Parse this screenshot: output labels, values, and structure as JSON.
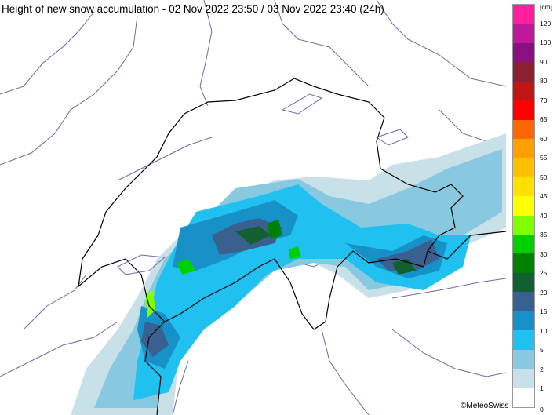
{
  "title": "Height of new snow accumulation - 02 Nov 2022 23:50 / 03 Nov 2022 23:40 (24h)",
  "copyright": "©MeteoSwiss",
  "legend": {
    "unit": "[cm]",
    "labels": [
      "120",
      "100",
      "90",
      "80",
      "70",
      "65",
      "60",
      "55",
      "50",
      "45",
      "40",
      "35",
      "30",
      "25",
      "20",
      "15",
      "10",
      "5",
      "2",
      "1",
      "0"
    ],
    "colors": [
      "#ff1fa0",
      "#c0189a",
      "#8a1080",
      "#8b2030",
      "#c01515",
      "#ff0000",
      "#ff6600",
      "#ffa000",
      "#ffc000",
      "#ffe000",
      "#ffff00",
      "#80ff00",
      "#00d000",
      "#008000",
      "#106030",
      "#3a6090",
      "#1890c8",
      "#20c0f0",
      "#88c8e0",
      "#c8e0e8",
      "#ffffff"
    ]
  },
  "colors": {
    "border": "#000000",
    "rivers_lakes": "#6060a0"
  }
}
